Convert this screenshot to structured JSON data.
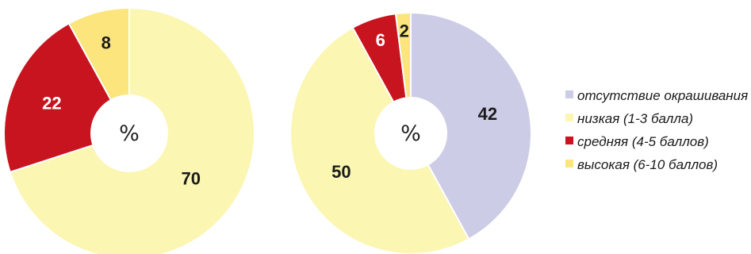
{
  "chart_data": [
    {
      "type": "pie",
      "donut": true,
      "center_label": "%",
      "categories": [
        "низкая (1-3 балла)",
        "средняя (4-5 баллов)",
        "высокая (6-10 баллов)"
      ],
      "values": [
        70,
        22,
        8
      ],
      "colors": [
        "#fbf6b2",
        "#c8141e",
        "#fbe57c"
      ],
      "data_labels": [
        "70",
        "22",
        "8"
      ],
      "label_colors": [
        "#1a1a1a",
        "#ffffff",
        "#1a1a1a"
      ]
    },
    {
      "type": "pie",
      "donut": true,
      "center_label": "%",
      "categories": [
        "отсутствие окрашивания",
        "низкая (1-3 балла)",
        "средняя (4-5 баллов)",
        "высокая (6-10 баллов)"
      ],
      "values": [
        42,
        50,
        6,
        2
      ],
      "colors": [
        "#cccce6",
        "#fbf6b2",
        "#c8141e",
        "#fbe57c"
      ],
      "data_labels": [
        "42",
        "50",
        "6",
        "2"
      ],
      "label_colors": [
        "#1a1a1a",
        "#1a1a1a",
        "#ffffff",
        "#1a1a1a"
      ]
    }
  ],
  "legend": {
    "position": "right",
    "items": [
      {
        "label": "отсутствие окрашивания",
        "color": "#cccce6"
      },
      {
        "label": "низкая (1-3 балла)",
        "color": "#fbf6b2"
      },
      {
        "label": "средняя (4-5 баллов)",
        "color": "#c8141e"
      },
      {
        "label": "высокая (6-10 баллов)",
        "color": "#fbe57c"
      }
    ]
  }
}
